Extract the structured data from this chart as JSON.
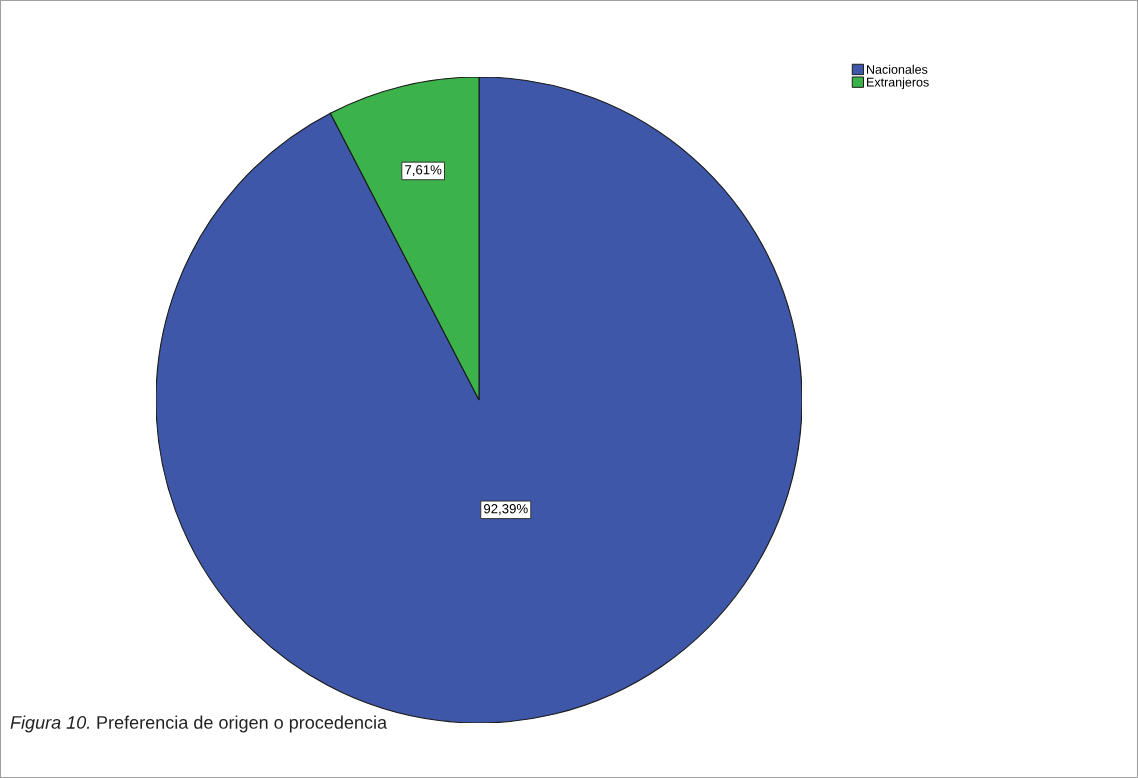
{
  "chart_data": {
    "type": "pie",
    "categories": [
      "Nacionales",
      "Extranjeros"
    ],
    "values": [
      92.39,
      7.61
    ],
    "colors": [
      "#3e57a8",
      "#3bb34a"
    ],
    "value_labels": [
      "92,39%",
      "7,61%"
    ],
    "legend": "top right",
    "annotations": [
      "Figura 10.",
      "Preferencia de origen o procedencia"
    ]
  }
}
